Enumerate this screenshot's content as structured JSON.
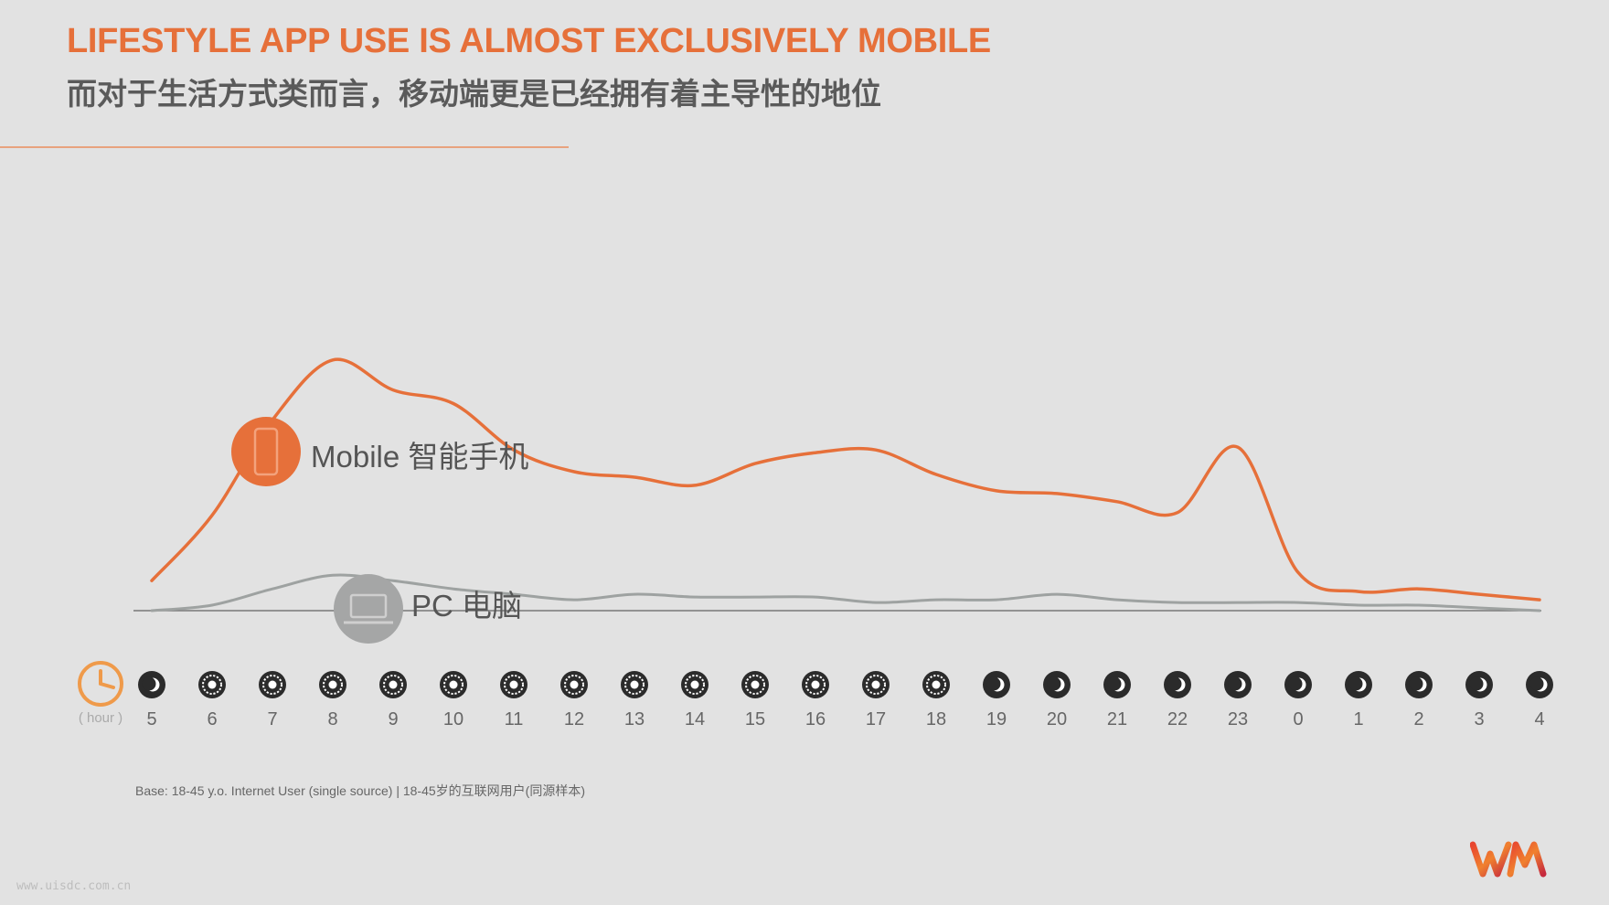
{
  "header": {
    "title": "LIFESTYLE APP USE IS ALMOST EXCLUSIVELY MOBILE",
    "subtitle": "而对于生活方式类而言，移动端更是已经拥有着主导性的地位"
  },
  "footer": {
    "base_note": "Base: 18-45 y.o. Internet User (single source) | 18-45岁的互联网用户(同源样本)",
    "watermark": "www.uisdc.com.cn"
  },
  "colors": {
    "mobile": "#e6703a",
    "pc": "#9ea2a1",
    "icon_dark": "#2b2b2b",
    "axis": "#777777"
  },
  "chart_data": {
    "type": "line",
    "title": "",
    "xlabel": "( hour )",
    "ylabel": "",
    "ylim": [
      0,
      100
    ],
    "grid": false,
    "legend": "inline labels",
    "categories": [
      "5",
      "6",
      "7",
      "8",
      "9",
      "10",
      "11",
      "12",
      "13",
      "14",
      "15",
      "16",
      "17",
      "18",
      "19",
      "20",
      "21",
      "22",
      "23",
      "0",
      "1",
      "2",
      "3",
      "4"
    ],
    "period_icons": [
      "moon",
      "sun",
      "sun",
      "sun",
      "sun",
      "sun",
      "sun",
      "sun",
      "sun",
      "sun",
      "sun",
      "sun",
      "sun",
      "sun",
      "moon",
      "moon",
      "moon",
      "moon",
      "moon",
      "moon",
      "moon",
      "moon",
      "moon",
      "moon"
    ],
    "series": [
      {
        "name": "Mobile 智能手机",
        "icon": "smartphone-icon",
        "values": [
          11,
          35,
          70,
          92,
          81,
          76,
          59,
          51,
          49,
          46,
          54,
          58,
          59,
          50,
          44,
          43,
          40,
          36,
          60,
          14,
          7,
          8,
          6,
          4
        ]
      },
      {
        "name": "PC 电脑",
        "icon": "laptop-icon",
        "values": [
          0,
          2,
          8,
          13,
          11,
          8,
          6,
          4,
          6,
          5,
          5,
          5,
          3,
          4,
          4,
          6,
          4,
          3,
          3,
          3,
          2,
          2,
          1,
          0
        ]
      }
    ]
  }
}
